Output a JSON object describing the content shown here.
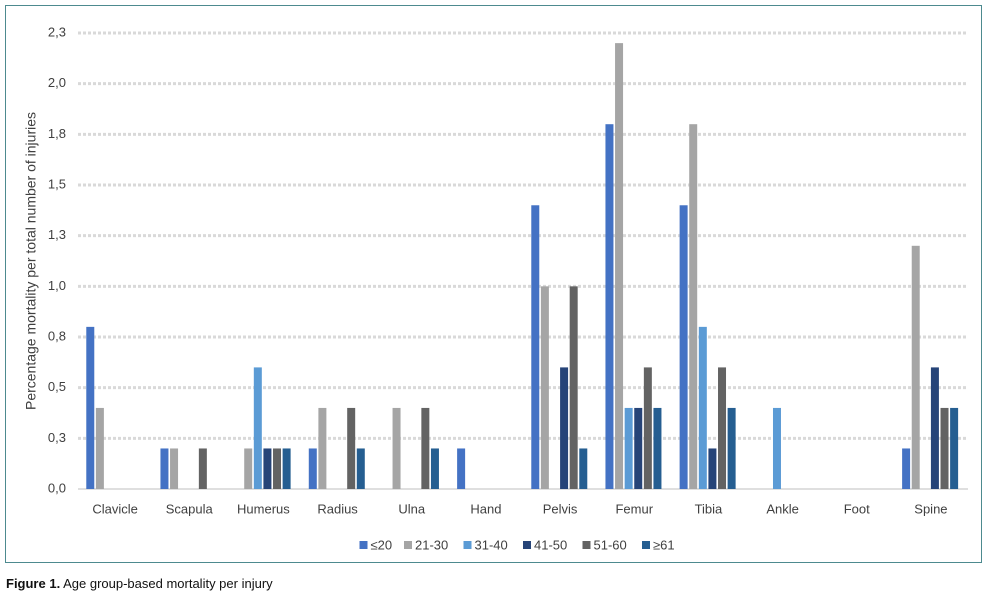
{
  "chart_data": {
    "type": "bar",
    "y_label": "Percentage mortality per total number of injuries",
    "categories": [
      "Clavicle",
      "Scapula",
      "Humerus",
      "Radius",
      "Ulna",
      "Hand",
      "Pelvis",
      "Femur",
      "Tibia",
      "Ankle",
      "Foot",
      "Spine"
    ],
    "series": [
      {
        "name": "≤20",
        "color": "#4472c4",
        "values": [
          0.8,
          0.2,
          0,
          0.2,
          0,
          0.2,
          1.4,
          1.8,
          1.4,
          0,
          0,
          0.2
        ]
      },
      {
        "name": "21-30",
        "color": "#a5a5a5",
        "values": [
          0.4,
          0.2,
          0.2,
          0.4,
          0.4,
          0,
          1.0,
          2.2,
          1.8,
          0,
          0,
          1.2
        ]
      },
      {
        "name": "31-40",
        "color": "#5b9bd5",
        "values": [
          0,
          0,
          0.6,
          0,
          0,
          0,
          0,
          0.4,
          0.8,
          0.4,
          0,
          0
        ]
      },
      {
        "name": "41-50",
        "color": "#264478",
        "values": [
          0,
          0,
          0.2,
          0,
          0,
          0,
          0.6,
          0.4,
          0.2,
          0,
          0,
          0.6
        ]
      },
      {
        "name": "51-60",
        "color": "#636363",
        "values": [
          0,
          0.2,
          0.2,
          0.4,
          0.4,
          0,
          1.0,
          0.6,
          0.6,
          0,
          0,
          0.4
        ]
      },
      {
        "name": "≥61",
        "color": "#255e91",
        "values": [
          0,
          0,
          0.2,
          0.2,
          0.2,
          0,
          0.2,
          0.4,
          0.4,
          0,
          0,
          0.4
        ]
      }
    ],
    "ylim": [
      0,
      2.25
    ],
    "yticks": [
      {
        "value": 0,
        "label": "0,0"
      },
      {
        "value": 0.25,
        "label": "0,3"
      },
      {
        "value": 0.5,
        "label": "0,5"
      },
      {
        "value": 0.75,
        "label": "0,8"
      },
      {
        "value": 1.0,
        "label": "1,0"
      },
      {
        "value": 1.25,
        "label": "1,3"
      },
      {
        "value": 1.5,
        "label": "1,5"
      },
      {
        "value": 1.75,
        "label": "1,8"
      },
      {
        "value": 2.0,
        "label": "2,0"
      },
      {
        "value": 2.25,
        "label": "2,3"
      }
    ],
    "grid": true,
    "legend": "bottom"
  },
  "figure": {
    "number": "Figure 1.",
    "caption": "Age group-based mortality per injury"
  }
}
